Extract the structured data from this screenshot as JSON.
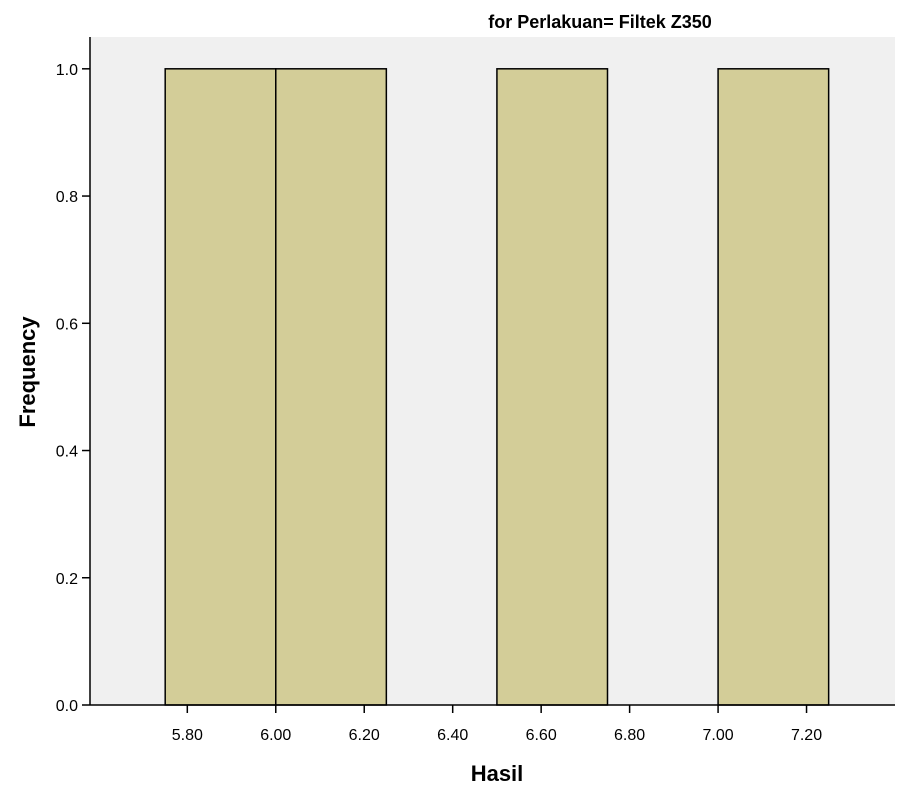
{
  "chart_data": {
    "type": "bar",
    "title": "for Perlakuan= Filtek Z350",
    "xlabel": "Hasil",
    "ylabel": "Frequency",
    "bins": [
      {
        "start": 5.75,
        "end": 6.0,
        "count": 1.0
      },
      {
        "start": 6.0,
        "end": 6.25,
        "count": 1.0
      },
      {
        "start": 6.5,
        "end": 6.75,
        "count": 1.0
      },
      {
        "start": 7.0,
        "end": 7.25,
        "count": 1.0
      }
    ],
    "xlim": [
      5.58,
      7.4
    ],
    "ylim": [
      0.0,
      1.05
    ],
    "x_ticks": [
      5.8,
      6.0,
      6.2,
      6.4,
      6.6,
      6.8,
      7.0,
      7.2
    ],
    "x_tick_labels": [
      "5.80",
      "6.00",
      "6.20",
      "6.40",
      "6.60",
      "6.80",
      "7.00",
      "7.20"
    ],
    "y_ticks": [
      0.0,
      0.2,
      0.4,
      0.6,
      0.8,
      1.0
    ],
    "y_tick_labels": [
      "0.0",
      "0.2",
      "0.4",
      "0.6",
      "0.8",
      "1.0"
    ],
    "grid": false,
    "colors": {
      "bar_fill": "#d3cd98",
      "bar_stroke": "#000000",
      "plot_background": "#f0f0f0"
    }
  }
}
